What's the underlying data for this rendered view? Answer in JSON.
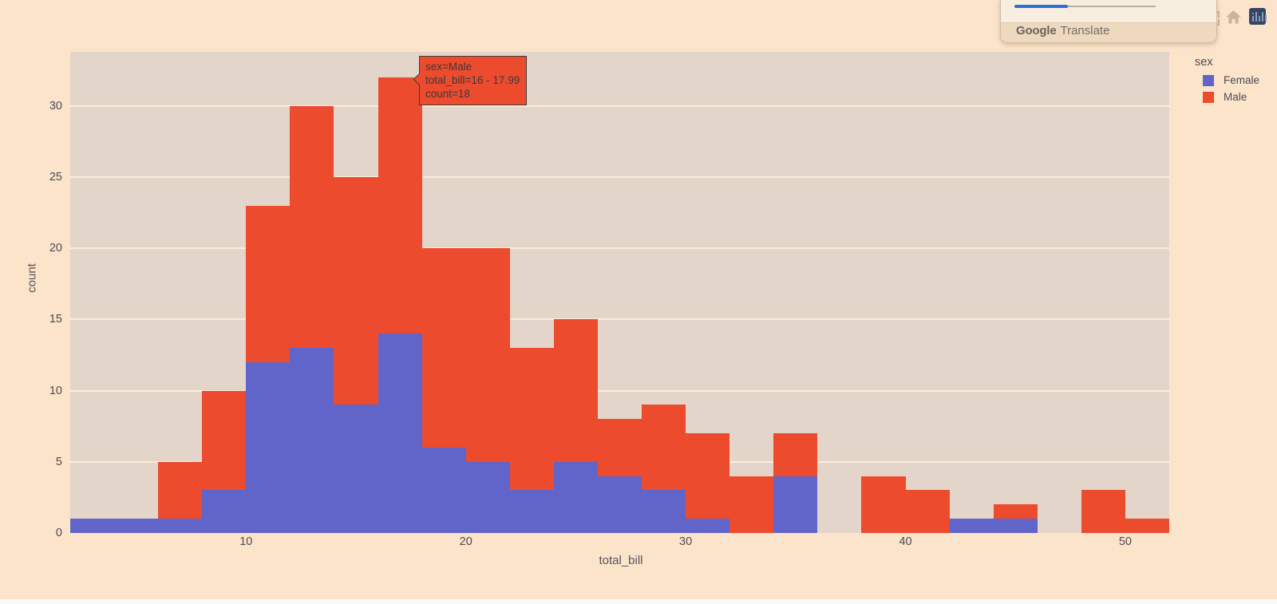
{
  "colors": {
    "page_bg": "#fce4cb",
    "plot_bg": "#e4d5ca",
    "gridline": "#fbeddc",
    "female": "#6165c9",
    "male": "#ec4b2e",
    "tick_text": "#4c4a54",
    "axis_title_text": "#55535d",
    "tooltip_border": "#3c3c3c",
    "tooltip_text": "#3a3a3a"
  },
  "chart_data": {
    "type": "bar",
    "subtype": "stacked-histogram",
    "title": "",
    "xlabel": "total_bill",
    "ylabel": "count",
    "legend_title": "sex",
    "legend_position": "top-right",
    "grid": "horizontal-only",
    "bin_width": 2,
    "bin_edges": [
      2,
      4,
      6,
      8,
      10,
      12,
      14,
      16,
      18,
      20,
      22,
      24,
      26,
      28,
      30,
      32,
      34,
      36,
      38,
      40,
      42,
      44,
      46,
      48,
      50,
      52
    ],
    "x_range": [
      2,
      52
    ],
    "y_range": [
      0,
      33.8
    ],
    "x_ticks": [
      10,
      20,
      30,
      40,
      50
    ],
    "y_ticks": [
      0,
      5,
      10,
      15,
      20,
      25,
      30
    ],
    "series": [
      {
        "name": "Female",
        "color": "#6165c9",
        "values": [
          1,
          1,
          1,
          3,
          12,
          13,
          9,
          14,
          6,
          5,
          3,
          5,
          4,
          3,
          1,
          0,
          4,
          0,
          0,
          0,
          1,
          1,
          0,
          0,
          0
        ]
      },
      {
        "name": "Male",
        "color": "#ec4b2e",
        "values": [
          0,
          0,
          4,
          7,
          11,
          17,
          16,
          18,
          14,
          15,
          10,
          10,
          4,
          6,
          6,
          4,
          3,
          0,
          4,
          3,
          0,
          1,
          0,
          3,
          1
        ]
      }
    ],
    "hovered_point": {
      "series": "Male",
      "bin": "16 - 17.99",
      "count": 18
    }
  },
  "tooltip": {
    "lines": [
      "sex=Male",
      "total_bill=16 - 17.99",
      "count=18"
    ]
  },
  "legend": {
    "title": "sex",
    "items": [
      {
        "label": "Female",
        "color": "#6165c9"
      },
      {
        "label": "Male",
        "color": "#ec4b2e"
      }
    ]
  },
  "translate_popup": {
    "brand": "Google",
    "product": "Translate"
  },
  "modebar": {
    "icons": [
      "autoscale-icon",
      "reset-axes-home-icon",
      "plotly-logo-icon"
    ]
  }
}
